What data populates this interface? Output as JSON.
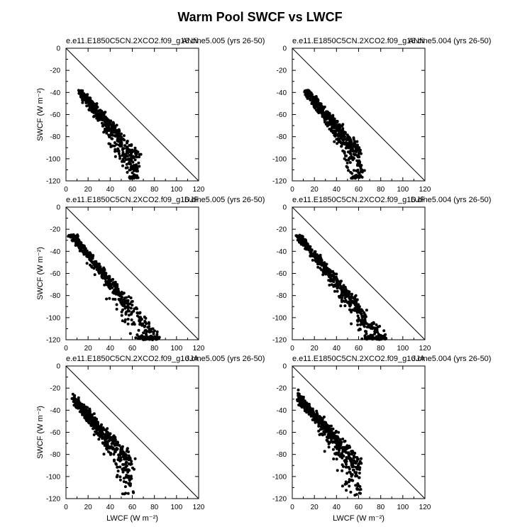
{
  "title": "Warm Pool SWCF vs LWCF",
  "panels": [
    {
      "label": "e.e11.E1850C5CN.2XCO2.f09_g16.cine5.005 (yrs 26-50)",
      "season": "ANN",
      "ylabel": "SWCF (W m⁻²)",
      "xlabel": "",
      "xlim": [
        0,
        120
      ],
      "ylim": [
        -120,
        0
      ],
      "xticks": [
        "0",
        "20",
        "40",
        "60",
        "80",
        "100",
        "120"
      ],
      "yticks": [
        "0",
        "-20",
        "-40",
        "-60",
        "-80",
        "-100",
        "-120"
      ],
      "chart_data": {
        "type": "scatter",
        "reference_line": "y = -x",
        "cloud": {
          "x_min": 13,
          "x_max": 65,
          "y_top": -38,
          "y_bottom": -118,
          "slope": -1.05,
          "intercept": -25
        }
      }
    },
    {
      "label": "e.e11.E1850C5CN.2XCO2.f09_g16.cine5.004 (yrs 26-50)",
      "season": "ANN",
      "ylabel": "",
      "xlabel": "",
      "xlim": [
        0,
        120
      ],
      "ylim": [
        -120,
        0
      ],
      "xticks": [
        "0",
        "20",
        "40",
        "60",
        "80",
        "100",
        "120"
      ],
      "yticks": [
        "0",
        "-20",
        "-40",
        "-60",
        "-80",
        "-100",
        "-120"
      ],
      "chart_data": {
        "type": "scatter",
        "reference_line": "y = -x",
        "cloud": {
          "x_min": 13,
          "x_max": 63,
          "y_top": -38,
          "y_bottom": -118,
          "slope": -1.05,
          "intercept": -25
        }
      }
    },
    {
      "label": "e.e11.E1850C5CN.2XCO2.f09_g16.cine5.005 (yrs 26-50)",
      "season": "DJF",
      "ylabel": "SWCF (W m⁻²)",
      "xlabel": "",
      "xlim": [
        0,
        120
      ],
      "ylim": [
        -120,
        0
      ],
      "xticks": [
        "0",
        "20",
        "40",
        "60",
        "80",
        "100",
        "120"
      ],
      "yticks": [
        "0",
        "-20",
        "-40",
        "-60",
        "-80",
        "-100",
        "-120"
      ],
      "chart_data": {
        "type": "scatter",
        "reference_line": "y = -x",
        "cloud": {
          "x_min": 5,
          "x_max": 84,
          "y_top": -25,
          "y_bottom": -120,
          "slope": -1.15,
          "intercept": -18
        }
      }
    },
    {
      "label": "e.e11.E1850C5CN.2XCO2.f09_g16.cine5.004 (yrs 26-50)",
      "season": "DJF",
      "ylabel": "",
      "xlabel": "",
      "xlim": [
        0,
        120
      ],
      "ylim": [
        -120,
        0
      ],
      "xticks": [
        "0",
        "20",
        "40",
        "60",
        "80",
        "100",
        "120"
      ],
      "yticks": [
        "0",
        "-20",
        "-40",
        "-60",
        "-80",
        "-100",
        "-120"
      ],
      "chart_data": {
        "type": "scatter",
        "reference_line": "y = -x",
        "cloud": {
          "x_min": 5,
          "x_max": 84,
          "y_top": -25,
          "y_bottom": -120,
          "slope": -1.15,
          "intercept": -18
        }
      }
    },
    {
      "label": "e.e11.E1850C5CN.2XCO2.f09_g16.cine5.005 (yrs 26-50)",
      "season": "JJA",
      "ylabel": "SWCF (W m⁻²)",
      "xlabel": "LWCF (W m⁻²)",
      "xlim": [
        0,
        120
      ],
      "ylim": [
        -120,
        0
      ],
      "xticks": [
        "0",
        "20",
        "40",
        "60",
        "80",
        "100",
        "120"
      ],
      "yticks": [
        "0",
        "-20",
        "-40",
        "-60",
        "-80",
        "-100",
        "-120"
      ],
      "chart_data": {
        "type": "scatter",
        "reference_line": "y = -x",
        "cloud": {
          "x_min": 8,
          "x_max": 60,
          "y_top": -21,
          "y_bottom": -116,
          "slope": -1.0,
          "intercept": -22
        }
      }
    },
    {
      "label": "e.e11.E1850C5CN.2XCO2.f09_g16.cine5.004 (yrs 26-50)",
      "season": "JJA",
      "ylabel": "",
      "xlabel": "LWCF (W m⁻²)",
      "xlim": [
        0,
        120
      ],
      "ylim": [
        -120,
        0
      ],
      "xticks": [
        "0",
        "20",
        "40",
        "60",
        "80",
        "100",
        "120"
      ],
      "yticks": [
        "0",
        "-20",
        "-40",
        "-60",
        "-80",
        "-100",
        "-120"
      ],
      "chart_data": {
        "type": "scatter",
        "reference_line": "y = -x",
        "cloud": {
          "x_min": 6,
          "x_max": 62,
          "y_top": -18,
          "y_bottom": -118,
          "slope": -1.0,
          "intercept": -22
        }
      }
    }
  ]
}
